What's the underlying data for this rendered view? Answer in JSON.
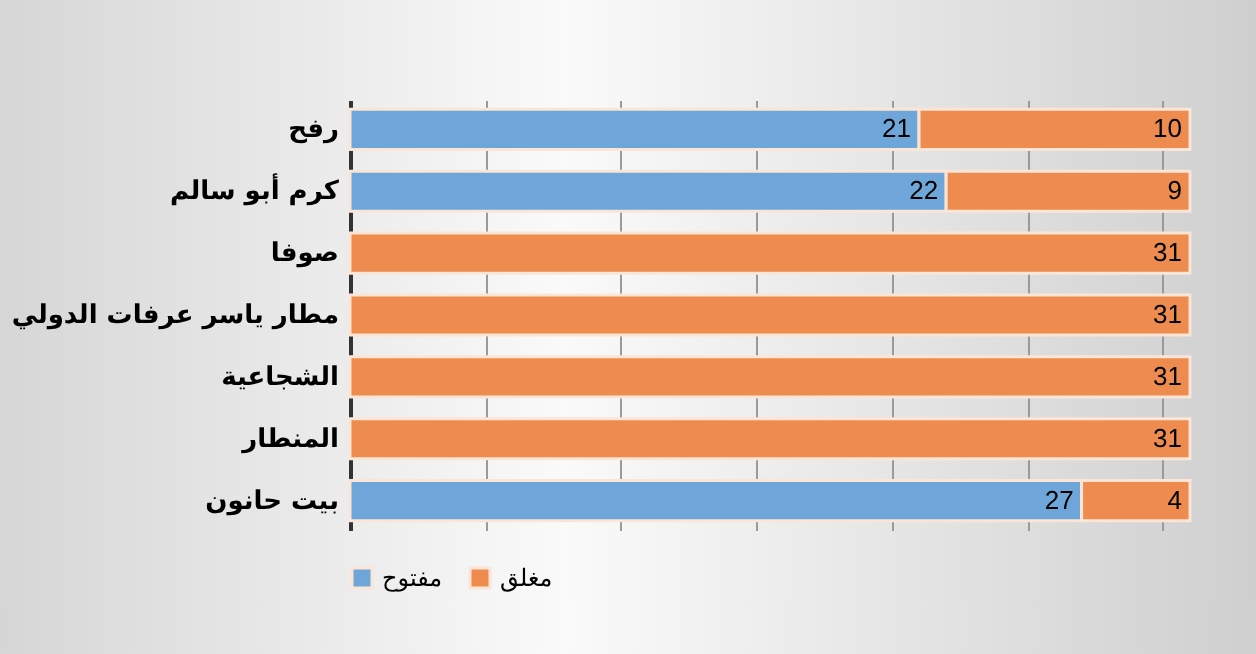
{
  "chart_data": {
    "type": "bar",
    "orientation": "horizontal",
    "stacked": true,
    "categories": [
      "رفح",
      "كرم أبو سالم",
      "صوفا",
      "مطار ياسر عرفات الدولي",
      "الشجاعية",
      "المنطار",
      "بيت حانون"
    ],
    "series": [
      {
        "name": "مفتوح",
        "color": "#6fa6da",
        "values": [
          21,
          22,
          null,
          null,
          null,
          null,
          27
        ]
      },
      {
        "name": "مغلق",
        "color": "#ee8c4f",
        "values": [
          10,
          9,
          31,
          31,
          31,
          31,
          4
        ]
      }
    ],
    "xticks": [
      {
        "value": 0,
        "label": null
      },
      {
        "value": 5,
        "label": null
      },
      {
        "value": 10,
        "label": null
      },
      {
        "value": 15,
        "label": null
      },
      {
        "value": 20,
        "label": null
      },
      {
        "value": 25,
        "label": null
      },
      {
        "value": 30,
        "label": null
      }
    ],
    "tick_labels": "y",
    "grid": "x",
    "legend": "bottom",
    "data_labels": true
  }
}
